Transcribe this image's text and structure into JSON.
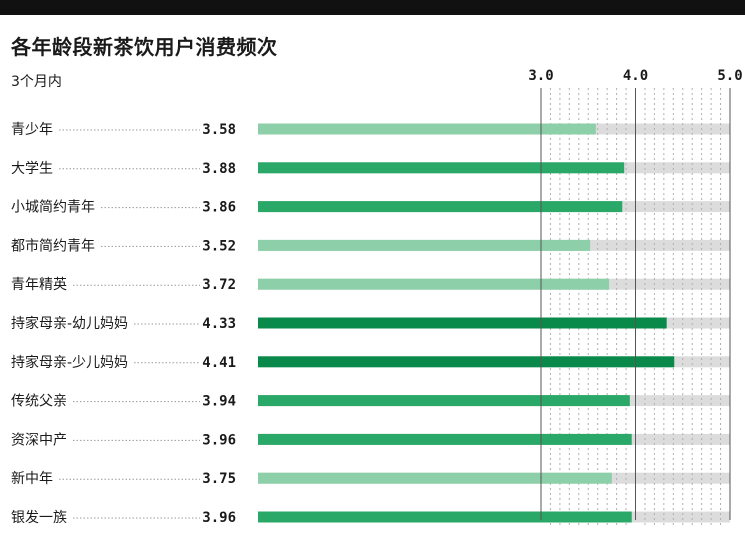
{
  "title": "各年龄段新茶饮用户消费频次",
  "subtitle": "3个月内",
  "colors": {
    "dark": "#0a8a4a",
    "mid": "#2aa867",
    "light": "#8dcfa8",
    "track": "#dcdcdc",
    "topbar": "#111111"
  },
  "chart_data": {
    "type": "bar",
    "orientation": "horizontal",
    "categories": [
      "青少年",
      "大学生",
      "小城简约青年",
      "都市简约青年",
      "青年精英",
      "持家母亲-幼儿妈妈",
      "持家母亲-少儿妈妈",
      "传统父亲",
      "资深中产",
      "新中年",
      "银发一族"
    ],
    "values": [
      3.58,
      3.88,
      3.86,
      3.52,
      3.72,
      4.33,
      4.41,
      3.94,
      3.96,
      3.75,
      3.96
    ],
    "value_labels": [
      "3.58",
      "3.88",
      "3.86",
      "3.52",
      "3.72",
      "4.33",
      "4.41",
      "3.94",
      "3.96",
      "3.75",
      "3.96"
    ],
    "xticks": [
      "3.0",
      "4.0",
      "5.0"
    ],
    "xlim": [
      3.0,
      5.0
    ],
    "grid": true,
    "title": "各年龄段新茶饮用户消费频次",
    "subtitle": "3个月内"
  }
}
